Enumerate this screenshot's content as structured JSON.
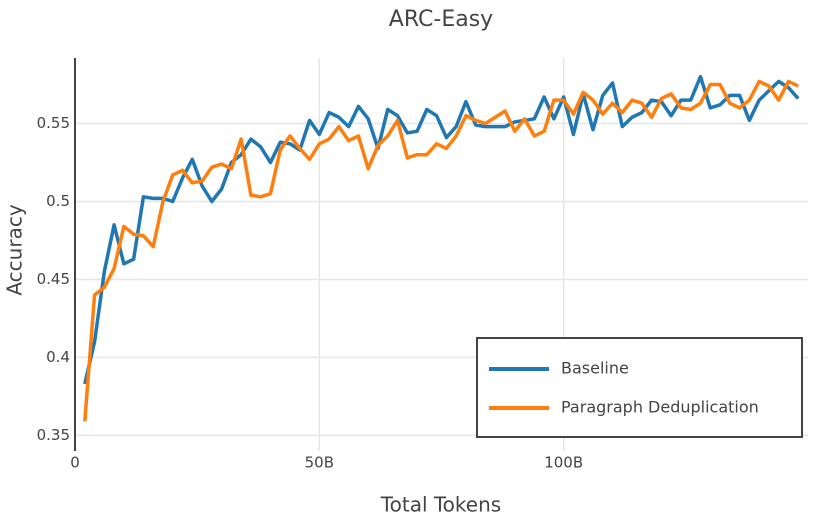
{
  "chart_data": {
    "type": "line",
    "title": "ARC-Easy",
    "x_label": "Total Tokens",
    "y_label": "Accuracy",
    "x": [
      2,
      4,
      6,
      8,
      10,
      12,
      14,
      16,
      18,
      20,
      22,
      24,
      26,
      28,
      30,
      32,
      34,
      36,
      38,
      40,
      42,
      44,
      46,
      48,
      50,
      52,
      54,
      56,
      58,
      60,
      62,
      64,
      66,
      68,
      70,
      72,
      74,
      76,
      78,
      80,
      82,
      84,
      86,
      88,
      90,
      92,
      94,
      96,
      98,
      100,
      102,
      104,
      106,
      108,
      110,
      112,
      114,
      116,
      118,
      120,
      122,
      124,
      126,
      128,
      130,
      132,
      134,
      136,
      138,
      140,
      142,
      144,
      146,
      148
    ],
    "series": [
      {
        "name": "Baseline",
        "color": "#1f77b4",
        "values": [
          0.383,
          0.41,
          0.455,
          0.485,
          0.46,
          0.463,
          0.503,
          0.502,
          0.502,
          0.5,
          0.515,
          0.527,
          0.51,
          0.5,
          0.508,
          0.525,
          0.53,
          0.54,
          0.535,
          0.525,
          0.538,
          0.537,
          0.533,
          0.552,
          0.543,
          0.557,
          0.554,
          0.548,
          0.561,
          0.553,
          0.534,
          0.559,
          0.555,
          0.544,
          0.545,
          0.559,
          0.555,
          0.541,
          0.548,
          0.564,
          0.549,
          0.548,
          0.548,
          0.548,
          0.551,
          0.552,
          0.553,
          0.567,
          0.553,
          0.567,
          0.543,
          0.569,
          0.546,
          0.568,
          0.576,
          0.548,
          0.554,
          0.557,
          0.565,
          0.564,
          0.555,
          0.565,
          0.565,
          0.58,
          0.56,
          0.562,
          0.568,
          0.568,
          0.552,
          0.565,
          0.571,
          0.577,
          0.573,
          0.566
        ]
      },
      {
        "name": "Paragraph Deduplication",
        "color": "#ff7f0e",
        "values": [
          0.359,
          0.44,
          0.445,
          0.457,
          0.484,
          0.479,
          0.478,
          0.471,
          0.5,
          0.517,
          0.52,
          0.512,
          0.513,
          0.522,
          0.524,
          0.521,
          0.54,
          0.504,
          0.503,
          0.505,
          0.533,
          0.542,
          0.534,
          0.527,
          0.537,
          0.54,
          0.548,
          0.539,
          0.542,
          0.521,
          0.536,
          0.542,
          0.552,
          0.528,
          0.53,
          0.53,
          0.537,
          0.534,
          0.542,
          0.555,
          0.552,
          0.55,
          0.554,
          0.558,
          0.545,
          0.553,
          0.542,
          0.545,
          0.565,
          0.565,
          0.556,
          0.57,
          0.565,
          0.556,
          0.563,
          0.557,
          0.565,
          0.563,
          0.554,
          0.566,
          0.569,
          0.56,
          0.559,
          0.563,
          0.575,
          0.575,
          0.563,
          0.56,
          0.565,
          0.577,
          0.574,
          0.565,
          0.577,
          0.574
        ]
      }
    ],
    "xlim": [
      0,
      150
    ],
    "xticks": [
      0,
      {
        "value": 50,
        "label": "50B"
      },
      {
        "value": 100,
        "label": "100B"
      }
    ],
    "ylim": [
      0.34,
      0.592
    ],
    "yticks": [
      0.35,
      0.4,
      0.45,
      0.5,
      0.55
    ],
    "grid": true,
    "legend_position": "bottom-right"
  }
}
